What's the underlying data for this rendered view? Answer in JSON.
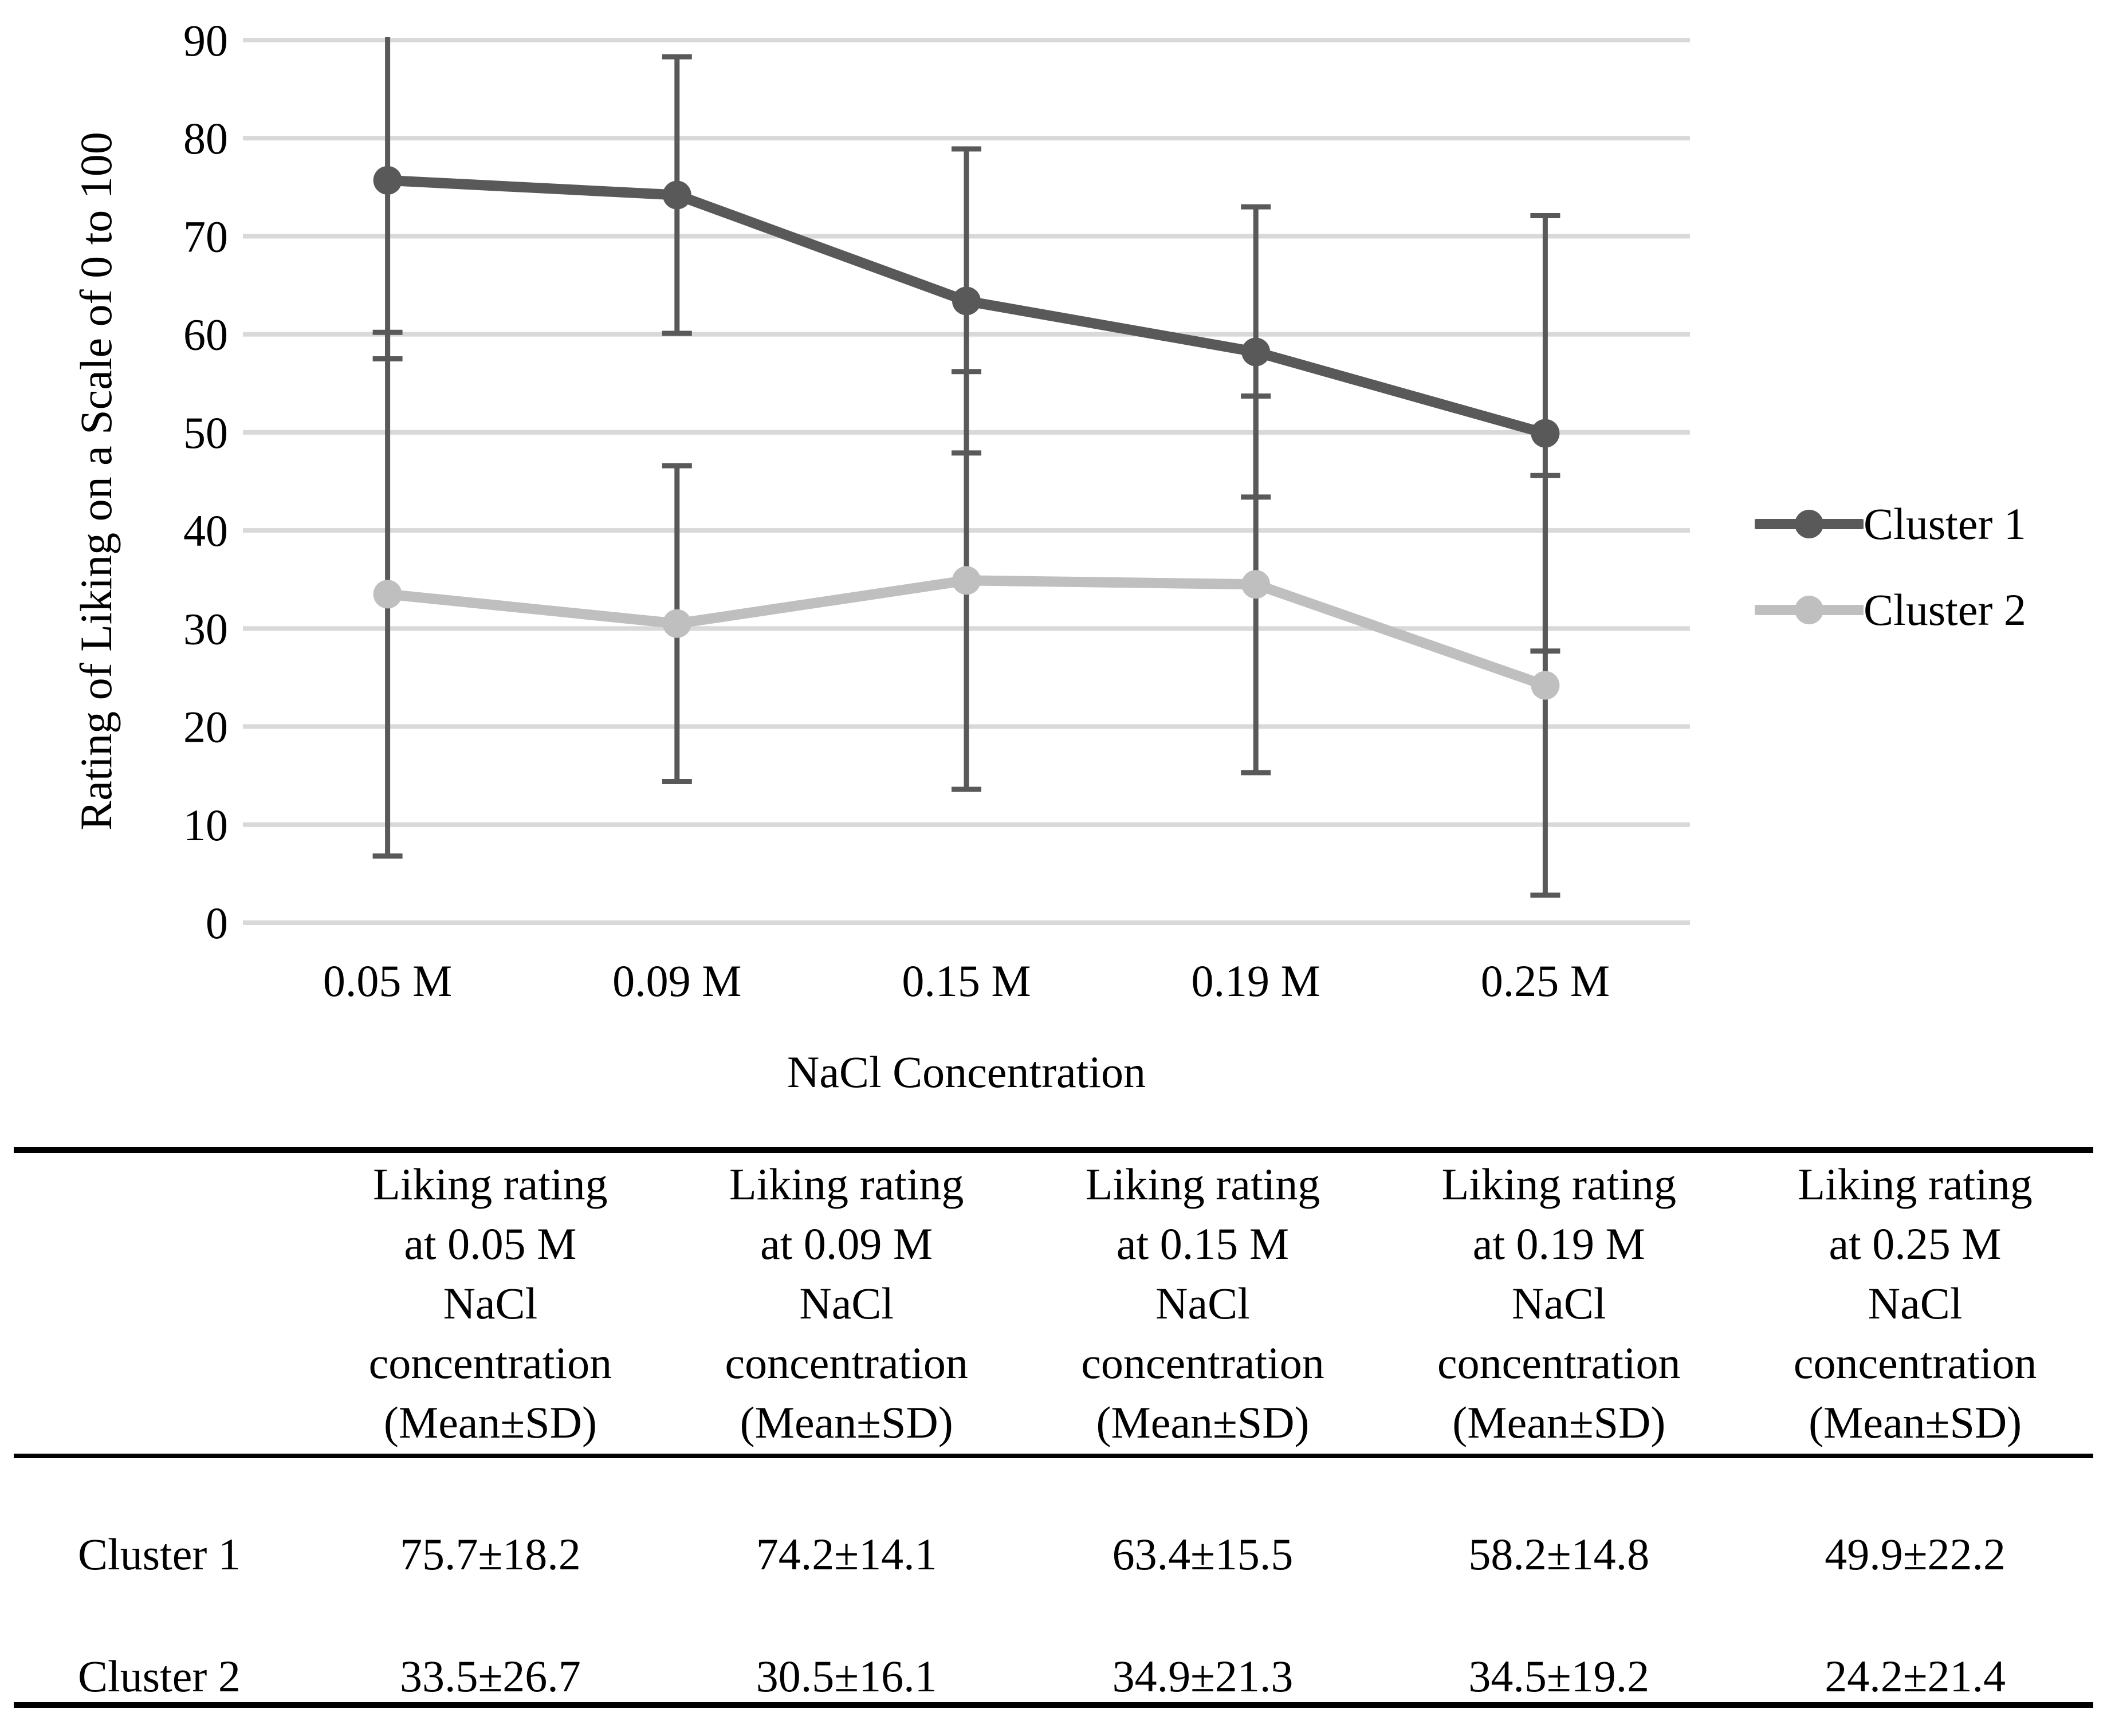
{
  "chart_data": {
    "type": "line",
    "title": "",
    "xlabel": "NaCl Concentration",
    "ylabel": "Rating of Liking on a Scale of 0 to 100",
    "categories": [
      "0.05 M",
      "0.09 M",
      "0.15 M",
      "0.19 M",
      "0.25 M"
    ],
    "ylim": [
      0,
      90
    ],
    "ytick_step": 10,
    "grid": true,
    "legend_position": "right",
    "gridline_color": "#d9d9d9",
    "error_bar_color": "#595959",
    "series": [
      {
        "name": "Cluster 1",
        "color": "#595959",
        "values": [
          75.7,
          74.2,
          63.4,
          58.2,
          49.9
        ],
        "sd": [
          18.2,
          14.1,
          15.5,
          14.8,
          22.2
        ]
      },
      {
        "name": "Cluster 2",
        "color": "#bfbfbf",
        "values": [
          33.5,
          30.5,
          34.9,
          34.5,
          24.2
        ],
        "sd": [
          26.7,
          16.1,
          21.3,
          19.2,
          21.4
        ]
      }
    ]
  },
  "table": {
    "headers": [
      "Liking rating\nat 0.05 M\nNaCl\nconcentration\n(Mean±SD)",
      "Liking rating\nat 0.09 M\nNaCl\nconcentration\n(Mean±SD)",
      "Liking rating\nat 0.15 M\nNaCl\nconcentration\n(Mean±SD)",
      "Liking rating\nat 0.19 M\nNaCl\nconcentration\n(Mean±SD)",
      "Liking rating\nat 0.25 M\nNaCl\nconcentration\n(Mean±SD)"
    ],
    "rows": [
      {
        "label": "Cluster 1",
        "values": [
          "75.7±18.2",
          "74.2±14.1",
          "63.4±15.5",
          "58.2±14.8",
          "49.9±22.2"
        ]
      },
      {
        "label": "Cluster 2",
        "values": [
          "33.5±26.7",
          "30.5±16.1",
          "34.9±21.3",
          "34.5±19.2",
          "24.2±21.4"
        ]
      }
    ]
  }
}
